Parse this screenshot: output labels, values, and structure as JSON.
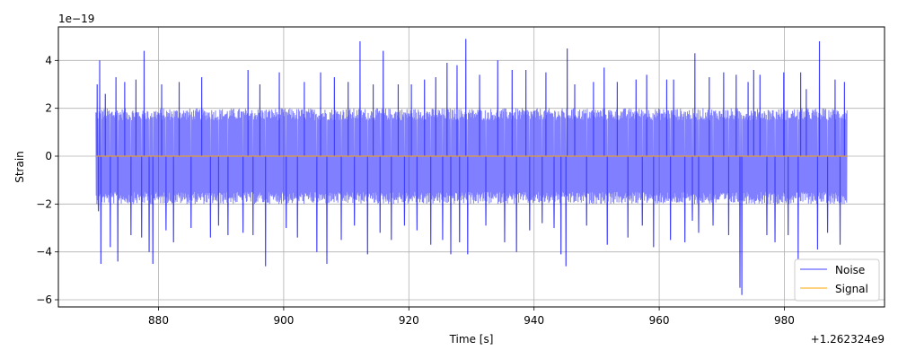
{
  "chart_data": {
    "type": "line",
    "title": "",
    "xlabel": "Time [s]",
    "ylabel": "Strain",
    "x_offset_label": "+1.262324e9",
    "y_scale_label": "1e−19",
    "xlim": [
      864.0,
      996.0
    ],
    "ylim": [
      -6.3,
      5.4
    ],
    "x_ticks": [
      880,
      900,
      920,
      940,
      960,
      980
    ],
    "y_ticks": [
      -6,
      -4,
      -2,
      0,
      2,
      4
    ],
    "grid": true,
    "legend_position": "lower-right",
    "colors": {
      "noise": "#0000ff",
      "noise_opacity": 0.5,
      "signal": "#ffa500"
    },
    "series": [
      {
        "name": "Noise",
        "kind": "noise-band",
        "x_range": [
          870.0,
          990.0
        ],
        "band_core": [
          -2.0,
          2.0
        ],
        "spikes": [
          [
            870.2,
            3.0
          ],
          [
            870.4,
            -2.3
          ],
          [
            870.6,
            4.0
          ],
          [
            870.8,
            -4.5
          ],
          [
            871.5,
            2.6
          ],
          [
            872.3,
            -3.8
          ],
          [
            873.2,
            3.3
          ],
          [
            873.5,
            -4.4
          ],
          [
            874.6,
            3.1
          ],
          [
            875.6,
            -3.3
          ],
          [
            876.4,
            3.2
          ],
          [
            877.3,
            -3.4
          ],
          [
            877.7,
            4.4
          ],
          [
            878.5,
            -4.0
          ],
          [
            879.1,
            -4.5
          ],
          [
            880.5,
            3.0
          ],
          [
            881.2,
            -3.1
          ],
          [
            882.4,
            -3.6
          ],
          [
            883.3,
            3.1
          ],
          [
            885.2,
            -3.0
          ],
          [
            886.9,
            3.3
          ],
          [
            888.3,
            -3.4
          ],
          [
            889.6,
            -2.9
          ],
          [
            891.1,
            -3.3
          ],
          [
            893.5,
            -3.2
          ],
          [
            894.3,
            3.6
          ],
          [
            895.1,
            -3.3
          ],
          [
            896.2,
            3.0
          ],
          [
            897.1,
            -4.6
          ],
          [
            899.3,
            3.5
          ],
          [
            900.4,
            -3.0
          ],
          [
            902.2,
            -3.4
          ],
          [
            903.3,
            3.1
          ],
          [
            905.3,
            -4.0
          ],
          [
            905.9,
            3.5
          ],
          [
            906.9,
            -4.5
          ],
          [
            908.1,
            3.3
          ],
          [
            909.2,
            -3.5
          ],
          [
            910.3,
            3.1
          ],
          [
            911.3,
            -2.9
          ],
          [
            912.2,
            4.8
          ],
          [
            913.4,
            -4.1
          ],
          [
            914.3,
            3.0
          ],
          [
            915.4,
            -3.2
          ],
          [
            915.9,
            4.4
          ],
          [
            917.2,
            -3.5
          ],
          [
            918.3,
            3.0
          ],
          [
            919.3,
            -2.9
          ],
          [
            920.4,
            3.0
          ],
          [
            921.3,
            -3.1
          ],
          [
            922.5,
            3.2
          ],
          [
            923.5,
            -3.7
          ],
          [
            924.3,
            3.3
          ],
          [
            925.4,
            -3.5
          ],
          [
            926.1,
            3.9
          ],
          [
            926.7,
            -4.1
          ],
          [
            927.7,
            3.8
          ],
          [
            928.1,
            -3.6
          ],
          [
            929.1,
            4.9
          ],
          [
            929.4,
            -4.1
          ],
          [
            931.3,
            3.4
          ],
          [
            932.3,
            -2.9
          ],
          [
            934.2,
            4.0
          ],
          [
            935.3,
            -3.6
          ],
          [
            936.5,
            3.6
          ],
          [
            937.2,
            -4.0
          ],
          [
            938.7,
            3.6
          ],
          [
            939.3,
            -3.1
          ],
          [
            941.3,
            -2.8
          ],
          [
            941.9,
            3.5
          ],
          [
            943.2,
            -3.0
          ],
          [
            944.3,
            -4.1
          ],
          [
            945.1,
            -4.6
          ],
          [
            945.3,
            4.5
          ],
          [
            946.5,
            3.0
          ],
          [
            948.4,
            -2.9
          ],
          [
            949.5,
            3.1
          ],
          [
            951.2,
            3.7
          ],
          [
            951.7,
            -3.7
          ],
          [
            953.3,
            3.1
          ],
          [
            955.0,
            -3.4
          ],
          [
            956.3,
            3.2
          ],
          [
            957.3,
            -2.9
          ],
          [
            958.0,
            3.4
          ],
          [
            959.1,
            -3.8
          ],
          [
            961.2,
            3.2
          ],
          [
            961.8,
            -3.5
          ],
          [
            962.3,
            3.2
          ],
          [
            964.1,
            -3.6
          ],
          [
            965.3,
            -2.7
          ],
          [
            965.7,
            4.3
          ],
          [
            966.3,
            -3.2
          ],
          [
            968.0,
            3.3
          ],
          [
            968.6,
            -2.9
          ],
          [
            970.3,
            3.5
          ],
          [
            971.1,
            -3.3
          ],
          [
            972.3,
            3.4
          ],
          [
            972.9,
            -5.5
          ],
          [
            973.2,
            -5.8
          ],
          [
            974.2,
            3.1
          ],
          [
            975.1,
            3.6
          ],
          [
            976.1,
            3.4
          ],
          [
            977.2,
            -3.3
          ],
          [
            978.5,
            -3.6
          ],
          [
            979.9,
            3.5
          ],
          [
            980.6,
            -3.3
          ],
          [
            982.2,
            -4.3
          ],
          [
            982.6,
            3.5
          ],
          [
            983.5,
            2.8
          ],
          [
            985.3,
            -3.9
          ],
          [
            985.6,
            4.8
          ],
          [
            986.9,
            -3.2
          ],
          [
            988.1,
            3.2
          ],
          [
            988.9,
            -3.7
          ],
          [
            989.6,
            3.1
          ]
        ]
      },
      {
        "name": "Signal",
        "kind": "line",
        "x": [
          870.0,
          990.0
        ],
        "y": [
          0.0,
          0.0
        ]
      }
    ]
  }
}
